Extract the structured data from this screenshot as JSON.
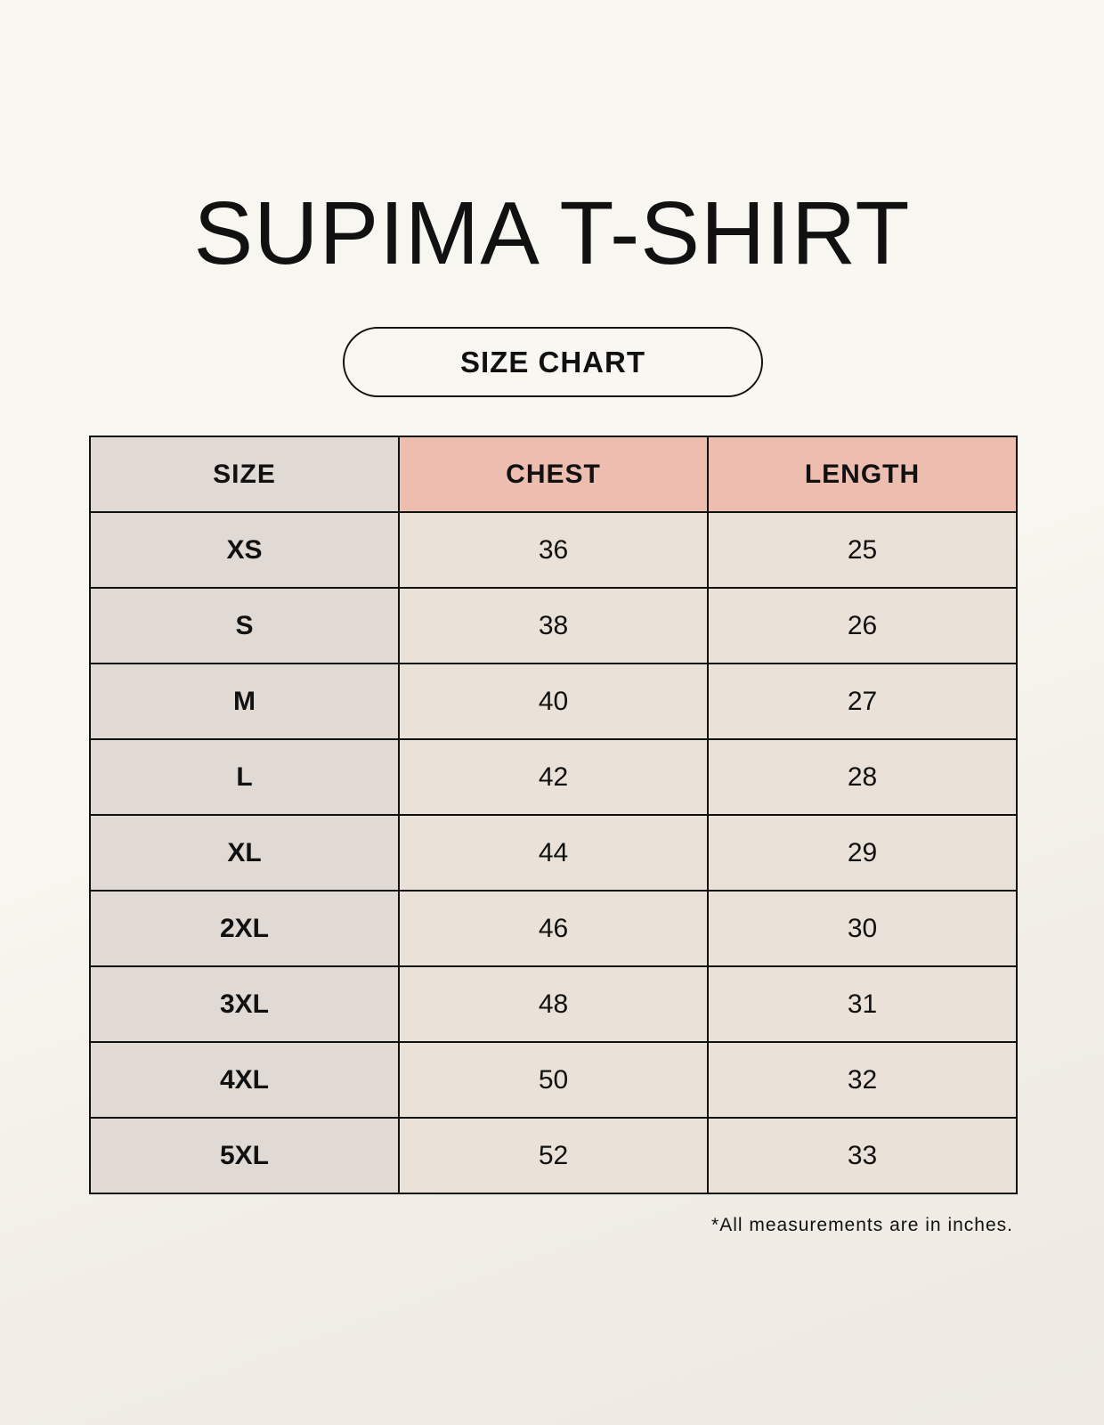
{
  "title": "SUPIMA T-SHIRT",
  "subtitle": "SIZE CHART",
  "table": {
    "headers": [
      "SIZE",
      "CHEST",
      "LENGTH"
    ],
    "rows": [
      [
        "XS",
        "36",
        "25"
      ],
      [
        "S",
        "38",
        "26"
      ],
      [
        "M",
        "40",
        "27"
      ],
      [
        "L",
        "42",
        "28"
      ],
      [
        "XL",
        "44",
        "29"
      ],
      [
        "2XL",
        "46",
        "30"
      ],
      [
        "3XL",
        "48",
        "31"
      ],
      [
        "4XL",
        "50",
        "32"
      ],
      [
        "5XL",
        "52",
        "33"
      ]
    ]
  },
  "footnote": "*All measurements are in inches.",
  "colors": {
    "size_column": "#e1d9d3",
    "measurement_header": "#edbdaf",
    "cell": "#eae2d8"
  }
}
